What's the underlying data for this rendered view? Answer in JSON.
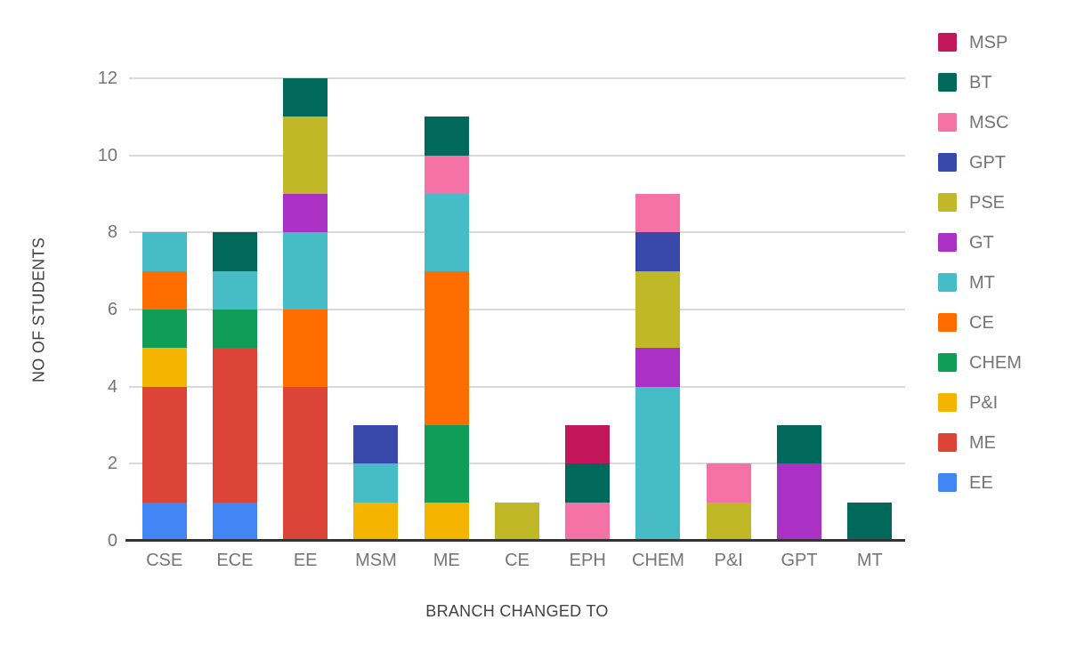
{
  "chart_data": {
    "type": "bar",
    "stacked": true,
    "title": "",
    "xlabel": "BRANCH CHANGED TO",
    "ylabel": "NO OF STUDENTS",
    "categories": [
      "CSE",
      "ECE",
      "EE",
      "MSM",
      "ME",
      "CE",
      "EPH",
      "CHEM",
      "P&I",
      "GPT",
      "MT"
    ],
    "y_ticks": [
      0,
      2,
      4,
      6,
      8,
      10,
      12
    ],
    "ylim": [
      0,
      12
    ],
    "grid": "horizontal",
    "legend_position": "right",
    "series": [
      {
        "name": "EE",
        "color": "#4285F4",
        "values": [
          1,
          1,
          0,
          0,
          0,
          0,
          0,
          0,
          0,
          0,
          0
        ]
      },
      {
        "name": "ME",
        "color": "#DB4437",
        "values": [
          3,
          4,
          4,
          0,
          0,
          0,
          0,
          0,
          0,
          0,
          0
        ]
      },
      {
        "name": "P&I",
        "color": "#F4B400",
        "values": [
          1,
          0,
          0,
          1,
          1,
          0,
          0,
          0,
          0,
          0,
          0
        ]
      },
      {
        "name": "CHEM",
        "color": "#0F9D58",
        "values": [
          1,
          1,
          0,
          0,
          2,
          0,
          0,
          0,
          0,
          0,
          0
        ]
      },
      {
        "name": "CE",
        "color": "#FF6D00",
        "values": [
          1,
          0,
          2,
          0,
          4,
          0,
          0,
          0,
          0,
          0,
          0
        ]
      },
      {
        "name": "MT",
        "color": "#46BDC6",
        "values": [
          1,
          1,
          2,
          1,
          2,
          0,
          0,
          4,
          0,
          0,
          0
        ]
      },
      {
        "name": "GT",
        "color": "#AB30C4",
        "values": [
          0,
          0,
          1,
          0,
          0,
          0,
          0,
          1,
          0,
          2,
          0
        ]
      },
      {
        "name": "PSE",
        "color": "#C0B826",
        "values": [
          0,
          0,
          2,
          0,
          0,
          1,
          0,
          2,
          1,
          0,
          0
        ]
      },
      {
        "name": "GPT",
        "color": "#3949AB",
        "values": [
          0,
          0,
          0,
          1,
          0,
          0,
          0,
          1,
          0,
          0,
          0
        ]
      },
      {
        "name": "MSC",
        "color": "#F472A6",
        "values": [
          0,
          0,
          0,
          0,
          1,
          0,
          1,
          1,
          1,
          0,
          0
        ]
      },
      {
        "name": "BT",
        "color": "#00695C",
        "values": [
          0,
          1,
          1,
          0,
          1,
          0,
          1,
          0,
          0,
          1,
          1
        ]
      },
      {
        "name": "MSP",
        "color": "#C2185B",
        "values": [
          0,
          0,
          0,
          0,
          0,
          0,
          1,
          0,
          0,
          0,
          0
        ]
      }
    ],
    "legend_order": [
      "MSP",
      "BT",
      "MSC",
      "GPT",
      "PSE",
      "GT",
      "MT",
      "CE",
      "CHEM",
      "P&I",
      "ME",
      "EE"
    ],
    "category_totals": [
      8,
      8,
      12,
      3,
      11,
      1,
      3,
      9,
      2,
      3,
      1
    ],
    "colors": {
      "background": "#ffffff",
      "gridline": "#d9d9d9",
      "baseline": "#333333",
      "tick_label": "#757575",
      "axis_title": "#424242"
    }
  }
}
